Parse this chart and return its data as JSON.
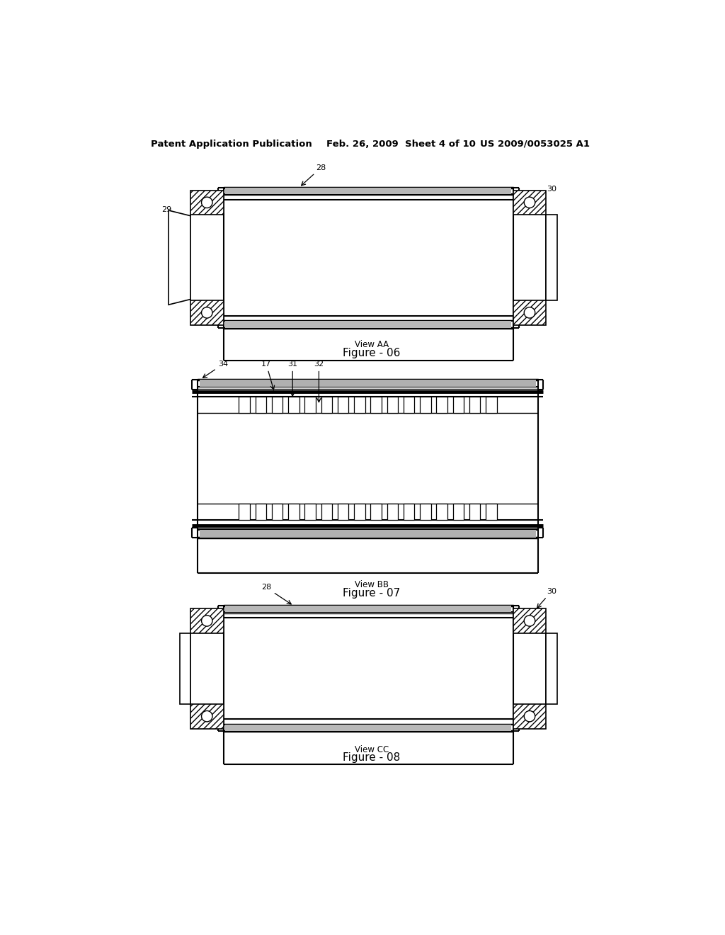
{
  "page_header_left": "Patent Application Publication",
  "page_header_mid": "Feb. 26, 2009  Sheet 4 of 10",
  "page_header_right": "US 2009/0053025 A1",
  "fig06_caption_line1": "View AA",
  "fig06_caption_line2": "Figure - 06",
  "fig07_caption_line1": "View BB",
  "fig07_caption_line2": "Figure - 07",
  "fig08_caption_line1": "View CC",
  "fig08_caption_line2": "Figure - 08",
  "bg_color": "#ffffff"
}
